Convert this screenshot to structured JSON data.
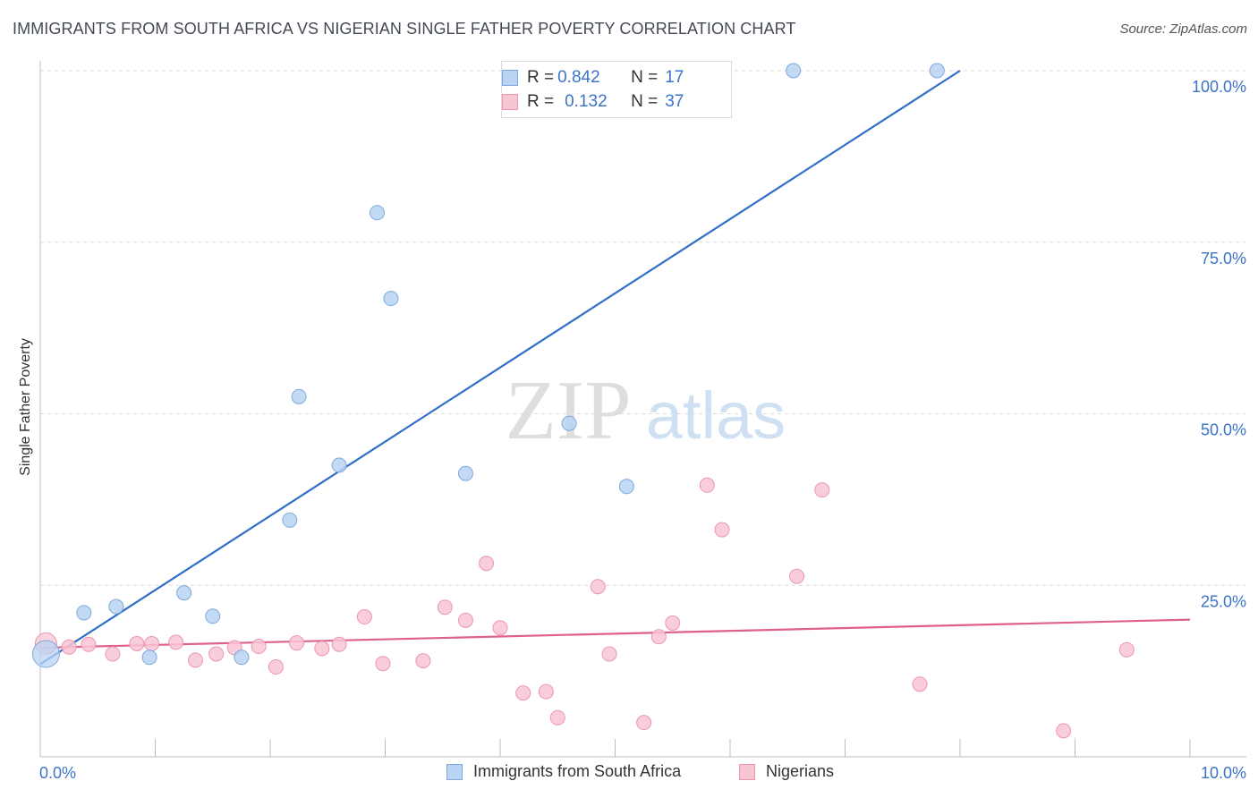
{
  "title": "IMMIGRANTS FROM SOUTH AFRICA VS NIGERIAN SINGLE FATHER POVERTY CORRELATION CHART",
  "source": "Source: ZipAtlas.com",
  "watermark": {
    "zip": "ZIP",
    "atlas": "atlas"
  },
  "legend_top": {
    "rows": [
      {
        "r_label": "R = ",
        "r_value": "0.842",
        "n_label": "N = ",
        "n_value": "17"
      },
      {
        "r_label": "R = ",
        "r_value": "0.132",
        "n_label": "N = ",
        "n_value": "37"
      }
    ]
  },
  "colors": {
    "blue_fill": "#b8d3f3",
    "blue_stroke": "#7fa8dc",
    "blue_line": "#2f6fc9",
    "pink_fill": "#f8c5d3",
    "pink_stroke": "#ea97ae",
    "pink_line": "#e0608d",
    "tick_label": "#3a73c8",
    "grid": "#d9d9d9"
  },
  "chart_data": {
    "type": "scatter",
    "title": "IMMIGRANTS FROM SOUTH AFRICA VS NIGERIAN SINGLE FATHER POVERTY CORRELATION CHART",
    "xlabel": "",
    "ylabel": "Single Father Poverty",
    "xlim": [
      0,
      10
    ],
    "ylim": [
      0,
      102.5
    ],
    "x_tick_labels": [
      "0.0%",
      "10.0%"
    ],
    "y_ticks": [
      25,
      50,
      75,
      100
    ],
    "y_tick_labels": [
      "25.0%",
      "50.0%",
      "75.0%",
      "100.0%"
    ],
    "legend_position": "bottom-center",
    "series": [
      {
        "name": "Immigrants from South Africa",
        "color": "blue",
        "points": [
          [
            0.05,
            15.0
          ],
          [
            0.38,
            21.0
          ],
          [
            0.66,
            21.9
          ],
          [
            0.95,
            14.5
          ],
          [
            1.25,
            23.9
          ],
          [
            1.5,
            20.5
          ],
          [
            1.75,
            14.5
          ],
          [
            2.17,
            34.5
          ],
          [
            2.25,
            52.5
          ],
          [
            2.6,
            42.5
          ],
          [
            2.93,
            79.3
          ],
          [
            3.05,
            66.8
          ],
          [
            3.7,
            41.3
          ],
          [
            4.6,
            48.6
          ],
          [
            5.1,
            39.4
          ],
          [
            6.55,
            100.0
          ],
          [
            7.8,
            100.0
          ]
        ],
        "trend": {
          "x": [
            0.0,
            8.0
          ],
          "y": [
            13.5,
            100.0
          ]
        }
      },
      {
        "name": "Nigerians",
        "color": "pink",
        "points": [
          [
            0.05,
            16.5
          ],
          [
            0.25,
            16.0
          ],
          [
            0.42,
            16.4
          ],
          [
            0.63,
            15.0
          ],
          [
            0.84,
            16.5
          ],
          [
            0.97,
            16.5
          ],
          [
            1.18,
            16.7
          ],
          [
            1.35,
            14.1
          ],
          [
            1.53,
            15.0
          ],
          [
            1.69,
            15.9
          ],
          [
            1.9,
            16.1
          ],
          [
            2.05,
            13.1
          ],
          [
            2.23,
            16.6
          ],
          [
            2.45,
            15.8
          ],
          [
            2.6,
            16.4
          ],
          [
            2.82,
            20.4
          ],
          [
            2.98,
            13.6
          ],
          [
            3.33,
            14.0
          ],
          [
            3.52,
            21.8
          ],
          [
            3.7,
            19.9
          ],
          [
            3.88,
            28.2
          ],
          [
            4.0,
            18.8
          ],
          [
            4.2,
            9.3
          ],
          [
            4.4,
            9.5
          ],
          [
            4.5,
            5.7
          ],
          [
            4.85,
            24.8
          ],
          [
            4.95,
            15.0
          ],
          [
            5.25,
            5.0
          ],
          [
            5.38,
            17.5
          ],
          [
            5.5,
            19.5
          ],
          [
            5.8,
            39.6
          ],
          [
            5.93,
            33.1
          ],
          [
            6.58,
            26.3
          ],
          [
            6.8,
            38.9
          ],
          [
            7.65,
            10.6
          ],
          [
            8.9,
            3.8
          ],
          [
            9.45,
            15.6
          ]
        ],
        "trend": {
          "x": [
            0.0,
            10.0
          ],
          "y": [
            15.9,
            20.0
          ]
        }
      }
    ]
  }
}
